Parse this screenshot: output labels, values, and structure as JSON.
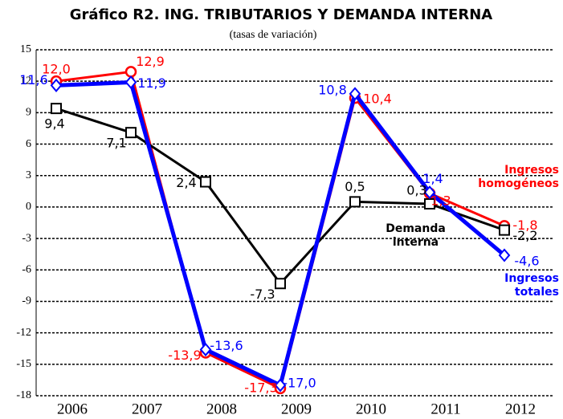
{
  "chart_data": {
    "type": "line",
    "title": "Gráfico R2. ING. TRIBUTARIOS Y DEMANDA INTERNA",
    "subtitle": "(tasas de variación)",
    "categories": [
      "2006",
      "2007",
      "2008",
      "2009",
      "2010",
      "2011",
      "2012"
    ],
    "series": [
      {
        "name": "Ingresos homogéneos",
        "color": "#ff0000",
        "marker": "circle",
        "values": [
          12.0,
          12.9,
          -13.9,
          -17.3,
          10.4,
          1.3,
          -1.8
        ],
        "value_labels": [
          "12,0",
          "12,9",
          "-13,9",
          "-17,3",
          "10,4",
          "1,3",
          "-1,8"
        ]
      },
      {
        "name": "Demanda interna",
        "color": "#000000",
        "marker": "square",
        "values": [
          9.4,
          7.1,
          2.4,
          -7.3,
          0.5,
          0.3,
          -2.2
        ],
        "value_labels": [
          "9,4",
          "7,1",
          "2,4",
          "-7,3",
          "0,5",
          "0,3",
          "-2,2"
        ]
      },
      {
        "name": "Ingresos totales",
        "color": "#0000ff",
        "marker": "diamond",
        "values": [
          11.6,
          11.9,
          -13.6,
          -17.0,
          10.8,
          1.4,
          -4.6
        ],
        "value_labels": [
          "11,6",
          "11,9",
          "-13,6",
          "-17,0",
          "10,8",
          "1,4",
          "-4,6"
        ]
      }
    ],
    "ylim": [
      -18,
      15
    ],
    "yticks": [
      -18,
      -15,
      -12,
      -9,
      -6,
      -3,
      0,
      3,
      6,
      9,
      12,
      15
    ],
    "grid": true
  }
}
